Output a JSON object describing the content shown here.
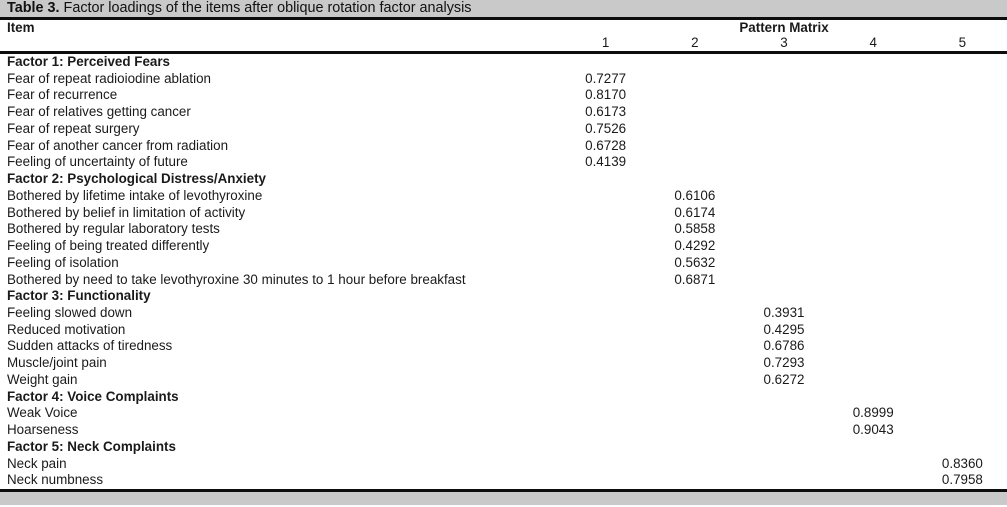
{
  "caption": {
    "number": "Table 3.",
    "text": "Factor loadings of the items after oblique rotation factor analysis"
  },
  "header": {
    "item": "Item",
    "group": "Pattern Matrix",
    "columns": [
      "1",
      "2",
      "3",
      "4",
      "5"
    ]
  },
  "sections": [
    {
      "label": "Factor 1: Perceived Fears",
      "column": 1,
      "items": [
        {
          "text": "Fear of repeat radioiodine ablation",
          "value": "0.7277"
        },
        {
          "text": "Fear of recurrence",
          "value": "0.8170"
        },
        {
          "text": "Fear of relatives getting cancer",
          "value": "0.6173"
        },
        {
          "text": "Fear of repeat surgery",
          "value": "0.7526"
        },
        {
          "text": "Fear of another cancer from radiation",
          "value": "0.6728"
        },
        {
          "text": "Feeling of uncertainty of future",
          "value": "0.4139"
        }
      ]
    },
    {
      "label": "Factor 2: Psychological Distress/Anxiety",
      "column": 2,
      "items": [
        {
          "text": "Bothered by lifetime intake of levothyroxine",
          "value": "0.6106"
        },
        {
          "text": "Bothered by belief in limitation of activity",
          "value": "0.6174"
        },
        {
          "text": "Bothered by regular laboratory tests",
          "value": "0.5858"
        },
        {
          "text": "Feeling of being treated differently",
          "value": "0.4292"
        },
        {
          "text": "Feeling of isolation",
          "value": "0.5632"
        },
        {
          "text": "Bothered by need to take levothyroxine 30 minutes to 1 hour before breakfast",
          "value": "0.6871"
        }
      ]
    },
    {
      "label": "Factor 3: Functionality",
      "column": 3,
      "items": [
        {
          "text": "Feeling slowed down",
          "value": "0.3931"
        },
        {
          "text": "Reduced motivation",
          "value": "0.4295"
        },
        {
          "text": "Sudden attacks of tiredness",
          "value": "0.6786"
        },
        {
          "text": "Muscle/joint pain",
          "value": "0.7293"
        },
        {
          "text": "Weight gain",
          "value": "0.6272"
        }
      ]
    },
    {
      "label": "Factor 4: Voice Complaints",
      "column": 4,
      "items": [
        {
          "text": "Weak Voice",
          "value": "0.8999"
        },
        {
          "text": "Hoarseness",
          "value": "0.9043"
        }
      ]
    },
    {
      "label": "Factor 5: Neck Complaints",
      "column": 5,
      "items": [
        {
          "text": "Neck pain",
          "value": "0.8360"
        },
        {
          "text": "Neck numbness",
          "value": "0.7958"
        }
      ]
    }
  ],
  "colors": {
    "bar_gray": "#c9c9c9",
    "rule_black": "#0d0d0d",
    "text": "#1a1a1a"
  }
}
